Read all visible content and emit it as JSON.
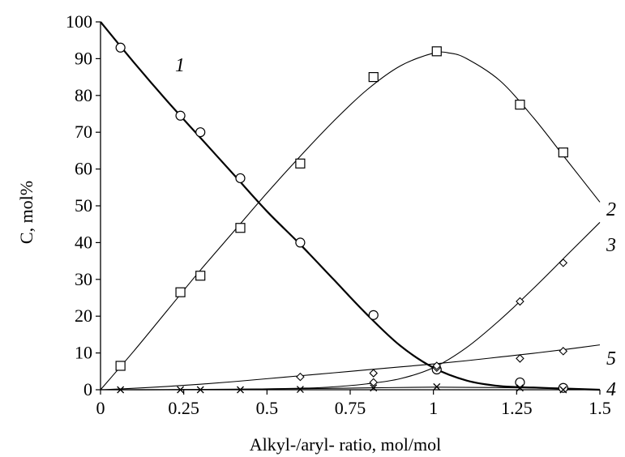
{
  "chart_data": {
    "type": "line",
    "xlabel": "Alkyl-/aryl- ratio, mol/mol",
    "ylabel": "C, mol%",
    "xlim": [
      0,
      1.5
    ],
    "ylim": [
      0,
      100
    ],
    "x_ticks": [
      {
        "value": 0,
        "label": "0"
      },
      {
        "value": 0.25,
        "label": "0.25"
      },
      {
        "value": 0.5,
        "label": "0.5"
      },
      {
        "value": 0.75,
        "label": "0.75"
      },
      {
        "value": 1,
        "label": "1"
      },
      {
        "value": 1.25,
        "label": "1.25"
      },
      {
        "value": 1.5,
        "label": "1.5"
      }
    ],
    "y_ticks": [
      {
        "value": 0,
        "label": "0"
      },
      {
        "value": 10,
        "label": "10"
      },
      {
        "value": 20,
        "label": "20"
      },
      {
        "value": 30,
        "label": "30"
      },
      {
        "value": 40,
        "label": "40"
      },
      {
        "value": 50,
        "label": "50"
      },
      {
        "value": 60,
        "label": "60"
      },
      {
        "value": 70,
        "label": "70"
      },
      {
        "value": 80,
        "label": "80"
      },
      {
        "value": 90,
        "label": "90"
      },
      {
        "value": 100,
        "label": "100"
      }
    ],
    "grid": false,
    "series": [
      {
        "label": "1",
        "marker": "circle",
        "line_bold": true,
        "points": [
          [
            0.06,
            93
          ],
          [
            0.24,
            74.5
          ],
          [
            0.3,
            70
          ],
          [
            0.42,
            57.5
          ],
          [
            0.6,
            40
          ],
          [
            0.82,
            20.3
          ],
          [
            1.01,
            5.5
          ],
          [
            1.26,
            2
          ],
          [
            1.39,
            0.5
          ]
        ],
        "curve": [
          [
            0,
            100
          ],
          [
            0.1,
            89
          ],
          [
            0.2,
            78.5
          ],
          [
            0.3,
            68.5
          ],
          [
            0.4,
            58.5
          ],
          [
            0.5,
            48.5
          ],
          [
            0.6,
            39.5
          ],
          [
            0.7,
            30
          ],
          [
            0.8,
            20.5
          ],
          [
            0.9,
            12
          ],
          [
            1.0,
            6
          ],
          [
            1.1,
            2.5
          ],
          [
            1.2,
            1
          ],
          [
            1.3,
            0.6
          ],
          [
            1.4,
            0.3
          ],
          [
            1.5,
            0
          ]
        ]
      },
      {
        "label": "2",
        "marker": "square",
        "line_bold": false,
        "points": [
          [
            0.06,
            6.5
          ],
          [
            0.24,
            26.5
          ],
          [
            0.3,
            31
          ],
          [
            0.42,
            44
          ],
          [
            0.6,
            61.5
          ],
          [
            0.82,
            85
          ],
          [
            1.01,
            92
          ],
          [
            1.26,
            77.5
          ],
          [
            1.39,
            64.5
          ]
        ],
        "curve": [
          [
            0,
            0
          ],
          [
            0.1,
            10.5
          ],
          [
            0.2,
            21.5
          ],
          [
            0.3,
            32.5
          ],
          [
            0.4,
            43
          ],
          [
            0.5,
            53.5
          ],
          [
            0.6,
            63.5
          ],
          [
            0.7,
            73
          ],
          [
            0.8,
            81.5
          ],
          [
            0.9,
            88
          ],
          [
            1.0,
            91.5
          ],
          [
            1.05,
            91.5
          ],
          [
            1.1,
            90
          ],
          [
            1.2,
            84
          ],
          [
            1.3,
            74
          ],
          [
            1.4,
            62.5
          ],
          [
            1.5,
            51
          ]
        ]
      },
      {
        "label": "3",
        "marker": "diamond",
        "line_bold": false,
        "points": [
          [
            0.82,
            2
          ],
          [
            1.01,
            6
          ],
          [
            1.26,
            24
          ],
          [
            1.39,
            34.5
          ]
        ],
        "curve": [
          [
            0,
            0
          ],
          [
            0.2,
            0
          ],
          [
            0.4,
            0.1
          ],
          [
            0.6,
            0.4
          ],
          [
            0.7,
            0.8
          ],
          [
            0.8,
            1.6
          ],
          [
            0.9,
            3
          ],
          [
            1.0,
            6
          ],
          [
            1.1,
            11.5
          ],
          [
            1.2,
            19
          ],
          [
            1.3,
            27.5
          ],
          [
            1.4,
            36.5
          ],
          [
            1.5,
            45.5
          ]
        ]
      },
      {
        "label": "4",
        "marker": "cross",
        "line_bold": false,
        "points": [
          [
            0.06,
            0
          ],
          [
            0.24,
            0
          ],
          [
            0.3,
            0
          ],
          [
            0.42,
            0
          ],
          [
            0.6,
            0.1
          ],
          [
            0.82,
            0.5
          ],
          [
            1.01,
            0.8
          ],
          [
            1.26,
            0.5
          ],
          [
            1.39,
            0
          ]
        ],
        "curve": [
          [
            0,
            0
          ],
          [
            0.3,
            0.1
          ],
          [
            0.6,
            0.3
          ],
          [
            0.8,
            0.5
          ],
          [
            1.0,
            0.7
          ],
          [
            1.2,
            0.6
          ],
          [
            1.4,
            0.3
          ],
          [
            1.5,
            0
          ]
        ]
      },
      {
        "label": "5",
        "marker": "diamond",
        "line_bold": false,
        "points": [
          [
            0.6,
            3.5
          ],
          [
            0.82,
            4.5
          ],
          [
            1.01,
            6.5
          ],
          [
            1.26,
            8.5
          ],
          [
            1.39,
            10.5
          ]
        ],
        "curve": [
          [
            0,
            0
          ],
          [
            0.1,
            0.4
          ],
          [
            0.2,
            0.9
          ],
          [
            0.3,
            1.5
          ],
          [
            0.4,
            2.2
          ],
          [
            0.5,
            3
          ],
          [
            0.6,
            3.8
          ],
          [
            0.7,
            4.6
          ],
          [
            0.8,
            5.4
          ],
          [
            0.9,
            6.2
          ],
          [
            1.0,
            7
          ],
          [
            1.1,
            7.9
          ],
          [
            1.2,
            8.9
          ],
          [
            1.3,
            9.9
          ],
          [
            1.4,
            11
          ],
          [
            1.5,
            12.2
          ]
        ]
      }
    ]
  }
}
